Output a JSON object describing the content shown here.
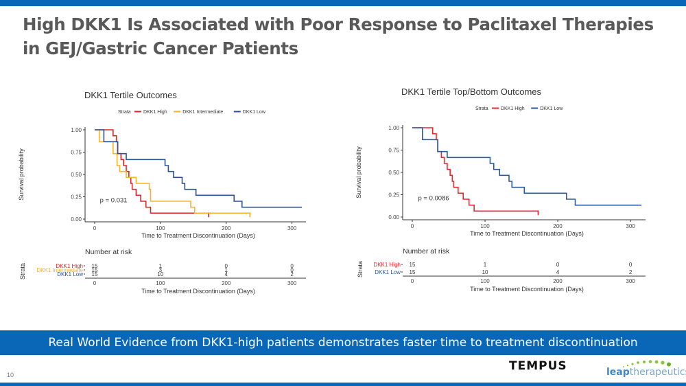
{
  "slide": {
    "title": "High DKK1 Is Associated with Poor Response to Paclitaxel Therapies in GEJ/Gastric Cancer Patients",
    "banner": "Real World Evidence from DKK1-high patients demonstrates faster time to treatment discontinuation",
    "page_number": "10",
    "logos": {
      "tempus": "TEMPUS",
      "leap_bold": "leap",
      "leap_light": "therapeutics"
    },
    "colors": {
      "brand_blue": "#0a66b7",
      "high": "#d7262b",
      "intermediate": "#f5b32a",
      "low": "#2a4f9b"
    }
  },
  "chart_data": [
    {
      "type": "line",
      "subtype": "kaplan-meier step",
      "title": "DKK1 Tertile Outcomes",
      "legend_title": "Strata",
      "legend_position": "top",
      "xlabel": "Time to Treatment Discontinuation (Days)",
      "ylabel": "Survival probability",
      "xlim": [
        0,
        315
      ],
      "ylim": [
        0,
        1
      ],
      "xticks": [
        0,
        100,
        200,
        300
      ],
      "yticks": [
        "0.00",
        "0.25",
        "0.50",
        "0.75",
        "1.00"
      ],
      "annotation": "p = 0.031",
      "series": [
        {
          "name": "DKK1 High",
          "color": "#d7262b",
          "x": [
            0,
            28,
            33,
            35,
            40,
            44,
            48,
            52,
            55,
            57,
            63,
            70,
            78,
            85,
            173
          ],
          "y": [
            1.0,
            0.933,
            0.867,
            0.733,
            0.667,
            0.6,
            0.533,
            0.467,
            0.4,
            0.333,
            0.267,
            0.2,
            0.133,
            0.067,
            0.067
          ],
          "censor_x": 173
        },
        {
          "name": "DKK1 Intermediate",
          "color": "#f5b32a",
          "x": [
            0,
            7,
            28,
            34,
            38,
            48,
            63,
            83,
            85,
            146,
            152,
            236
          ],
          "y": [
            1.0,
            0.867,
            0.733,
            0.6,
            0.533,
            0.467,
            0.4,
            0.333,
            0.2,
            0.133,
            0.067,
            0.067
          ],
          "censor_x": 236
        },
        {
          "name": "DKK1 Low",
          "color": "#2a4f9b",
          "x": [
            0,
            14,
            35,
            48,
            107,
            112,
            120,
            133,
            137,
            154,
            212,
            224,
            315
          ],
          "y": [
            1.0,
            0.867,
            0.733,
            0.667,
            0.6,
            0.533,
            0.467,
            0.4,
            0.333,
            0.267,
            0.2,
            0.133,
            0.133
          ],
          "censor_x": null
        }
      ],
      "risk_table": {
        "title": "Number at risk",
        "ylabel": "Strata",
        "xlabel": "Time to Treatment Discontinuation (Days)",
        "times": [
          0,
          100,
          200,
          300
        ],
        "rows": [
          {
            "name": "DKK1 High",
            "color": "#d7262b",
            "values": [
              "15",
              "1",
              "0",
              "0"
            ]
          },
          {
            "name": "DKK1 Intermediate",
            "color": "#f5b32a",
            "values": [
              "15",
              "3",
              "1",
              "0"
            ]
          },
          {
            "name": "DKK1 Low",
            "color": "#2a4f9b",
            "values": [
              "15",
              "10",
              "4",
              "2"
            ]
          }
        ]
      }
    },
    {
      "type": "line",
      "subtype": "kaplan-meier step",
      "title": "DKK1 Tertile Top/Bottom Outcomes",
      "legend_title": "Strata",
      "legend_position": "top",
      "xlabel": "Time to Treatment Discontinuation (Days)",
      "ylabel": "Survival probability",
      "xlim": [
        0,
        315
      ],
      "ylim": [
        0,
        1
      ],
      "xticks": [
        0,
        100,
        200,
        300
      ],
      "yticks": [
        "0.00",
        "0.25",
        "0.50",
        "0.75",
        "1.00"
      ],
      "annotation": "p = 0.0086",
      "series": [
        {
          "name": "DKK1 High",
          "color": "#e8262b",
          "x": [
            0,
            28,
            33,
            35,
            40,
            44,
            48,
            52,
            55,
            57,
            63,
            70,
            78,
            85,
            173
          ],
          "y": [
            1.0,
            0.933,
            0.867,
            0.733,
            0.667,
            0.6,
            0.533,
            0.467,
            0.4,
            0.333,
            0.267,
            0.2,
            0.133,
            0.067,
            0.067
          ],
          "censor_x": 173
        },
        {
          "name": "DKK1 Low",
          "color": "#2a5a9b",
          "x": [
            0,
            14,
            35,
            48,
            107,
            112,
            120,
            133,
            137,
            154,
            212,
            224,
            315
          ],
          "y": [
            1.0,
            0.867,
            0.733,
            0.667,
            0.6,
            0.533,
            0.467,
            0.4,
            0.333,
            0.267,
            0.2,
            0.133,
            0.133
          ],
          "censor_x": null
        }
      ],
      "risk_table": {
        "title": "Number at risk",
        "ylabel": "Strata",
        "xlabel": "Time to Treatment Discontinuation (Days)",
        "times": [
          0,
          100,
          200,
          300
        ],
        "rows": [
          {
            "name": "DKK1 High",
            "color": "#e8262b",
            "values": [
              "15",
              "1",
              "0",
              "0"
            ]
          },
          {
            "name": "DKK1 Low",
            "color": "#2a5a9b",
            "values": [
              "15",
              "10",
              "4",
              "2"
            ]
          }
        ]
      }
    }
  ]
}
